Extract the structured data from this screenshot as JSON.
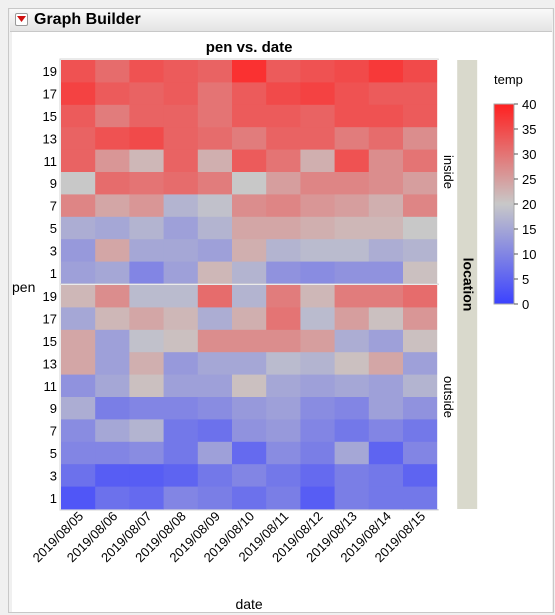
{
  "window": {
    "title": "Graph Builder",
    "menu_icon": "red-triangle-menu-icon"
  },
  "chart_data": {
    "type": "heatmap",
    "title": "pen vs. date",
    "xlabel": "date",
    "ylabel": "pen",
    "group_label": "location",
    "legend_title": "temp",
    "legend_placement": "right",
    "color_scale": {
      "min": 0,
      "mid": 20,
      "max": 40,
      "low_color": "#3b42ff",
      "mid_color": "#c8c8c8",
      "high_color": "#ff2020",
      "ticks": [
        0,
        5,
        10,
        15,
        20,
        25,
        30,
        35,
        40
      ]
    },
    "x": [
      "2019/08/05",
      "2019/08/06",
      "2019/08/07",
      "2019/08/08",
      "2019/08/09",
      "2019/08/10",
      "2019/08/11",
      "2019/08/12",
      "2019/08/13",
      "2019/08/14",
      "2019/08/15"
    ],
    "y": [
      19,
      17,
      15,
      13,
      11,
      9,
      7,
      5,
      3,
      1
    ],
    "panels": [
      {
        "name": "inside",
        "values": [
          [
            34,
            31,
            34,
            33,
            32,
            38,
            33,
            34,
            35,
            37,
            35
          ],
          [
            36,
            33,
            32,
            33,
            30,
            33,
            35,
            36,
            34,
            33,
            33
          ],
          [
            33,
            29,
            32,
            32,
            30,
            33,
            33,
            32,
            34,
            34,
            33
          ],
          [
            32,
            34,
            35,
            32,
            31,
            29,
            32,
            32,
            29,
            31,
            27
          ],
          [
            32,
            26,
            22,
            32,
            23,
            33,
            30,
            23,
            34,
            27,
            30
          ],
          [
            20,
            31,
            30,
            31,
            29,
            20,
            25,
            28,
            28,
            27,
            25
          ],
          [
            28,
            24,
            26,
            17,
            19,
            27,
            28,
            26,
            25,
            23,
            28
          ],
          [
            16,
            15,
            17,
            14,
            17,
            24,
            24,
            23,
            22,
            22,
            20
          ],
          [
            13,
            24,
            15,
            15,
            14,
            23,
            17,
            18,
            18,
            16,
            17
          ],
          [
            14,
            15,
            10,
            14,
            22,
            17,
            12,
            11,
            12,
            12,
            21
          ]
        ]
      },
      {
        "name": "outside",
        "values": [
          [
            22,
            27,
            18,
            18,
            31,
            17,
            29,
            22,
            29,
            29,
            31
          ],
          [
            15,
            22,
            24,
            22,
            16,
            23,
            30,
            18,
            25,
            21,
            26
          ],
          [
            24,
            14,
            19,
            21,
            27,
            27,
            27,
            25,
            16,
            14,
            21
          ],
          [
            24,
            14,
            23,
            13,
            15,
            15,
            18,
            17,
            21,
            24,
            14
          ],
          [
            12,
            15,
            21,
            14,
            14,
            21,
            15,
            14,
            15,
            14,
            17
          ],
          [
            16,
            9,
            10,
            10,
            11,
            13,
            14,
            11,
            10,
            14,
            12
          ],
          [
            11,
            15,
            17,
            8,
            7,
            12,
            13,
            10,
            8,
            10,
            8
          ],
          [
            10,
            10,
            11,
            8,
            14,
            6,
            11,
            9,
            15,
            5,
            10
          ],
          [
            7,
            4,
            4,
            5,
            8,
            10,
            8,
            6,
            9,
            8,
            5
          ],
          [
            3,
            7,
            6,
            10,
            9,
            7,
            9,
            4,
            9,
            8,
            8
          ]
        ]
      }
    ]
  }
}
